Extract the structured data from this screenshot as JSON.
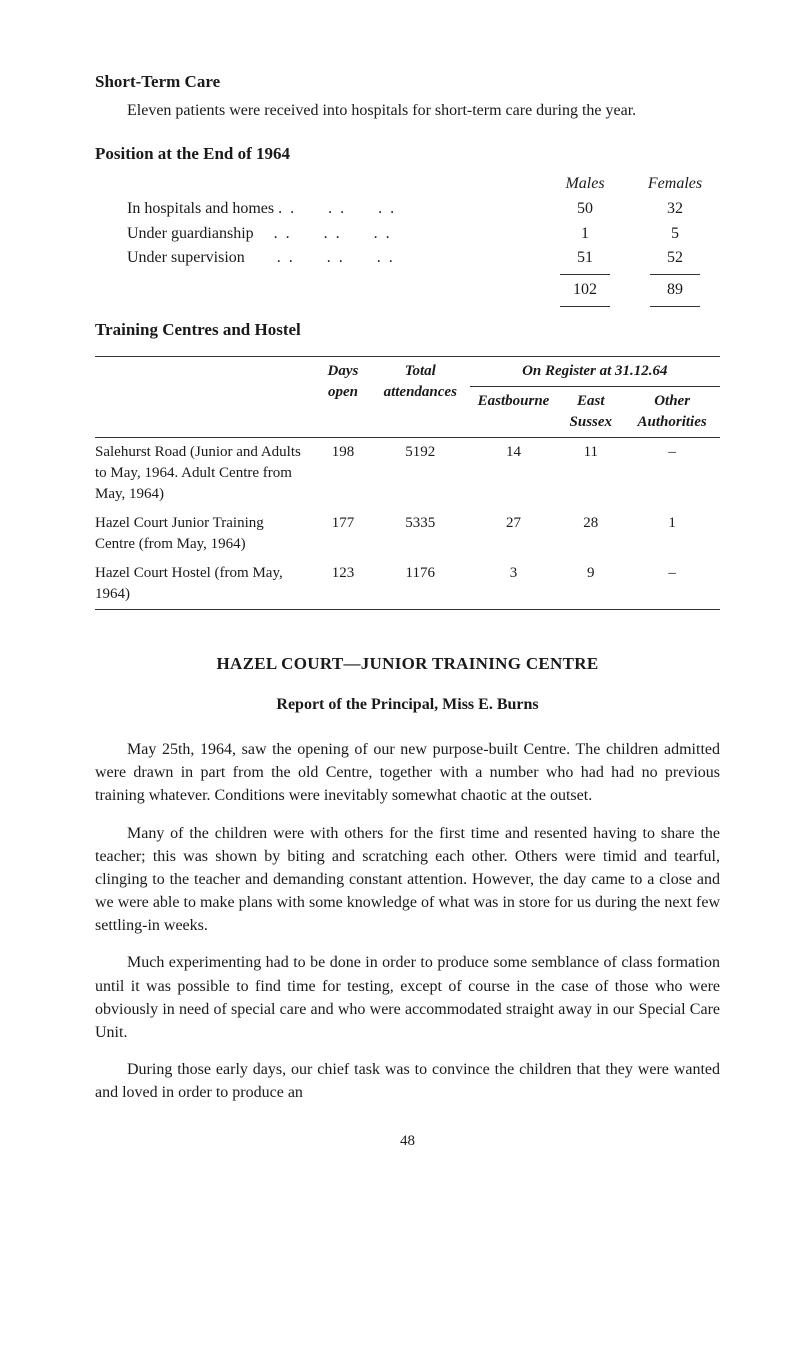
{
  "shortTerm": {
    "heading": "Short-Term Care",
    "paragraph": "Eleven patients were received into hospitals for short-term care during the year."
  },
  "position": {
    "heading": "Position at the End of 1964",
    "colHeaders": {
      "males": "Males",
      "females": "Females"
    },
    "rows": [
      {
        "label": "In hospitals and homes",
        "males": "50",
        "females": "32"
      },
      {
        "label": "Under guardianship",
        "males": "1",
        "females": "5"
      },
      {
        "label": "Under supervision",
        "males": "51",
        "females": "52"
      }
    ],
    "total": {
      "males": "102",
      "females": "89"
    }
  },
  "training": {
    "heading": "Training Centres and Hostel",
    "registerHeader": "On Register at 31.12.64",
    "cols": {
      "daysOpen": "Days open",
      "totalAttendances": "Total attendances",
      "eastbourne": "Eastbourne",
      "eastSussex": "East Sussex",
      "otherAuth": "Other Authorities"
    },
    "rows": [
      {
        "label": "Salehurst Road (Junior and Adults to May, 1964. Adult Centre from May, 1964)",
        "daysOpen": "198",
        "totalAttendances": "5192",
        "eastbourne": "14",
        "eastSussex": "11",
        "otherAuth": "–"
      },
      {
        "label": "Hazel Court Junior Training Centre (from May, 1964)",
        "daysOpen": "177",
        "totalAttendances": "5335",
        "eastbourne": "27",
        "eastSussex": "28",
        "otherAuth": "1"
      },
      {
        "label": "Hazel Court Hostel (from May, 1964)",
        "daysOpen": "123",
        "totalAttendances": "1176",
        "eastbourne": "3",
        "eastSussex": "9",
        "otherAuth": "–"
      }
    ]
  },
  "hazel": {
    "heading": "HAZEL COURT—JUNIOR TRAINING CENTRE",
    "subheading": "Report of the Principal, Miss E. Burns",
    "paragraphs": [
      "May 25th, 1964, saw the opening of our new purpose-built Centre. The children admitted were drawn in part from the old Centre, together with a number who had had no previous training whatever. Conditions were inevitably somewhat chaotic at the outset.",
      "Many of the children were with others for the first time and resented having to share the teacher; this was shown by biting and scratching each other. Others were timid and tearful, clinging to the teacher and demanding constant attention. However, the day came to a close and we were able to make plans with some knowledge of what was in store for us during the next few settling-in weeks.",
      "Much experimenting had to be done in order to produce some semblance of class formation until it was possible to find time for testing, except of course in the case of those who were obviously in need of special care and who were accommodated straight away in our Special Care Unit.",
      "During those early days, our chief task was to convince the children that they were wanted and loved in order to produce an"
    ]
  },
  "pageNumber": "48"
}
